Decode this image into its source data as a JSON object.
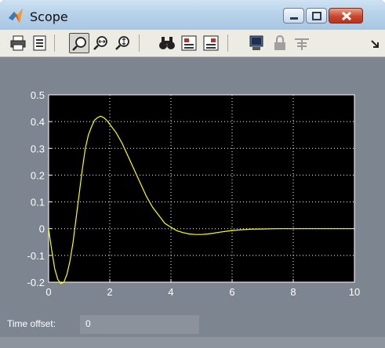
{
  "window": {
    "title": "Scope",
    "title_icon": "matlab-logo-icon",
    "controls": [
      "minimize-icon",
      "maximize-icon",
      "close-icon"
    ]
  },
  "toolbar": {
    "buttons": [
      {
        "name": "print-icon"
      },
      {
        "name": "parameters-icon"
      },
      {
        "name": "zoom-icon",
        "active": true
      },
      {
        "name": "zoom-x-icon"
      },
      {
        "name": "zoom-y-icon"
      },
      {
        "name": "autoscale-binoculars-icon"
      },
      {
        "name": "save-axes-settings-icon"
      },
      {
        "name": "restore-axes-settings-icon"
      },
      {
        "name": "floating-scope-icon"
      },
      {
        "name": "lock-axes-icon"
      },
      {
        "name": "signal-selection-icon"
      },
      {
        "name": "dock-arrow-icon"
      }
    ]
  },
  "status": {
    "time_offset_label": "Time offset:",
    "time_offset_value": "0"
  },
  "colors": {
    "plot_background": "#000000",
    "signal": "#ffff00",
    "grid": "#ffffff",
    "figure_background": "#7c8590",
    "axis_text": "#ffffff"
  },
  "chart_data": {
    "type": "line",
    "xlim": [
      0,
      10
    ],
    "ylim": [
      -0.2,
      0.5
    ],
    "xticks": [
      "0",
      "2",
      "4",
      "6",
      "8",
      "10"
    ],
    "yticks": [
      "0.5",
      "0.4",
      "0.3",
      "0.2",
      "0.1",
      "0",
      "-0.1",
      "-0.2"
    ],
    "grid": true,
    "series": [
      {
        "x": [
          0,
          0.1,
          0.2,
          0.3,
          0.4,
          0.5,
          0.6,
          0.7,
          0.8,
          0.9,
          1.0,
          1.1,
          1.2,
          1.3,
          1.4,
          1.5,
          1.6,
          1.7,
          1.8,
          1.9,
          2.0,
          2.2,
          2.4,
          2.6,
          2.8,
          3.0,
          3.2,
          3.4,
          3.6,
          3.8,
          4.0,
          4.2,
          4.4,
          4.6,
          4.8,
          5.0,
          5.2,
          5.4,
          5.6,
          5.8,
          6.0,
          6.3,
          6.6,
          7.0,
          7.5,
          8.0,
          8.5,
          9.0,
          9.5,
          10.0
        ],
        "y": [
          0,
          -0.08,
          -0.15,
          -0.19,
          -0.205,
          -0.2,
          -0.17,
          -0.12,
          -0.05,
          0.04,
          0.13,
          0.22,
          0.3,
          0.35,
          0.38,
          0.405,
          0.415,
          0.42,
          0.415,
          0.405,
          0.39,
          0.36,
          0.32,
          0.27,
          0.22,
          0.17,
          0.12,
          0.08,
          0.05,
          0.02,
          0.005,
          -0.008,
          -0.015,
          -0.02,
          -0.022,
          -0.022,
          -0.02,
          -0.017,
          -0.013,
          -0.01,
          -0.007,
          -0.004,
          -0.002,
          -0.001,
          0,
          0,
          0,
          0,
          0,
          0
        ]
      }
    ]
  }
}
